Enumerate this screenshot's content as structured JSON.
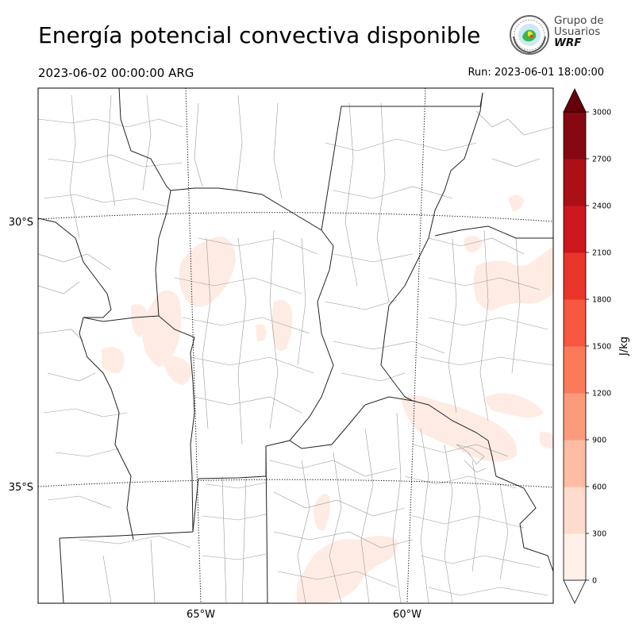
{
  "header": {
    "title": "Energía potencial convectiva disponible",
    "valid_time": "2023-06-02 00:00:00 ARG",
    "run_time": "Run: 2023-06-01 18:00:00"
  },
  "logo": {
    "line1": "Grupo de",
    "line2": "Usuarios",
    "line3": "WRF"
  },
  "map": {
    "lat_labels": [
      "30°S",
      "35°S"
    ],
    "lon_labels": [
      "65°W",
      "60°W"
    ]
  },
  "colorbar": {
    "label": "J/kg",
    "ticks": [
      "0",
      "300",
      "600",
      "900",
      "1200",
      "1500",
      "1800",
      "2100",
      "2400",
      "2700",
      "3000"
    ],
    "colors": [
      "#fff0e9",
      "#fedccd",
      "#fcbda4",
      "#fc9b7c",
      "#fb7a5a",
      "#f6573e",
      "#e93529",
      "#cc181d",
      "#ab1016",
      "#860811"
    ],
    "extend_max_color": "#67000d",
    "extend_min_color": "#ffffff"
  }
}
